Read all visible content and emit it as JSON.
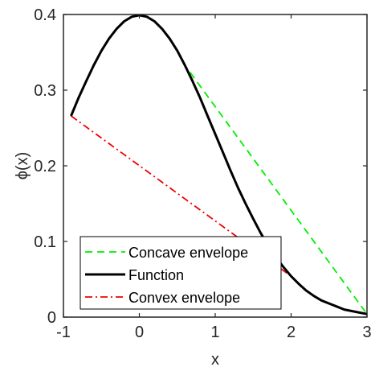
{
  "chart_data": {
    "type": "line",
    "xlabel": "x",
    "ylabel": "ϕ(x)",
    "xlim": [
      -1,
      3
    ],
    "ylim": [
      0,
      0.4
    ],
    "xticks": [
      -1,
      0,
      1,
      2,
      3
    ],
    "yticks": [
      0,
      0.1,
      0.2,
      0.3,
      0.4
    ],
    "x_tick_labels": [
      "-1",
      "0",
      "1",
      "2",
      "3"
    ],
    "y_tick_labels": [
      "0",
      "0.1",
      "0.2",
      "0.3",
      "0.4"
    ],
    "grid": false,
    "legend_position": "bottom-center",
    "series": [
      {
        "name": "Concave envelope",
        "style": "dashed",
        "color": "#00ee00",
        "x": [
          -0.9,
          -0.8,
          -0.7,
          -0.6,
          -0.5,
          -0.4,
          -0.3,
          -0.2,
          -0.1,
          0,
          0.1,
          0.2,
          0.3,
          0.4,
          0.5,
          0.6,
          3.0
        ],
        "y": [
          0.266,
          0.29,
          0.312,
          0.333,
          0.352,
          0.368,
          0.381,
          0.391,
          0.397,
          0.399,
          0.397,
          0.391,
          0.381,
          0.368,
          0.352,
          0.333,
          0.004
        ]
      },
      {
        "name": "Function",
        "style": "solid",
        "color": "#000000",
        "x": [
          -0.9,
          -0.8,
          -0.7,
          -0.6,
          -0.5,
          -0.4,
          -0.3,
          -0.2,
          -0.1,
          0,
          0.1,
          0.2,
          0.3,
          0.4,
          0.5,
          0.6,
          0.7,
          0.8,
          0.9,
          1.0,
          1.1,
          1.2,
          1.3,
          1.4,
          1.5,
          1.6,
          1.7,
          1.8,
          1.9,
          2.0,
          2.1,
          2.2,
          2.3,
          2.4,
          2.5,
          2.6,
          2.7,
          2.8,
          2.9,
          3.0
        ],
        "y": [
          0.266,
          0.29,
          0.312,
          0.333,
          0.352,
          0.368,
          0.381,
          0.391,
          0.397,
          0.399,
          0.397,
          0.391,
          0.381,
          0.368,
          0.352,
          0.333,
          0.312,
          0.29,
          0.266,
          0.242,
          0.218,
          0.194,
          0.171,
          0.15,
          0.13,
          0.111,
          0.094,
          0.079,
          0.066,
          0.054,
          0.044,
          0.035,
          0.028,
          0.022,
          0.018,
          0.014,
          0.01,
          0.008,
          0.006,
          0.004
        ]
      },
      {
        "name": "Convex envelope",
        "style": "dashdot",
        "color": "#ee0000",
        "x": [
          -0.9,
          2.0,
          2.1,
          2.2,
          2.3,
          2.4,
          2.5,
          2.6,
          2.7,
          2.8,
          2.9,
          3.0
        ],
        "y": [
          0.266,
          0.054,
          0.044,
          0.035,
          0.028,
          0.022,
          0.018,
          0.014,
          0.01,
          0.008,
          0.006,
          0.004
        ]
      }
    ]
  }
}
